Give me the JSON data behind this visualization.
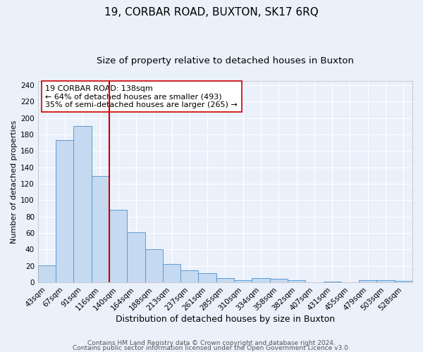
{
  "title": "19, CORBAR ROAD, BUXTON, SK17 6RQ",
  "subtitle": "Size of property relative to detached houses in Buxton",
  "xlabel": "Distribution of detached houses by size in Buxton",
  "ylabel": "Number of detached properties",
  "bin_labels": [
    "43sqm",
    "67sqm",
    "91sqm",
    "116sqm",
    "140sqm",
    "164sqm",
    "188sqm",
    "213sqm",
    "237sqm",
    "261sqm",
    "285sqm",
    "310sqm",
    "334sqm",
    "358sqm",
    "382sqm",
    "407sqm",
    "431sqm",
    "455sqm",
    "479sqm",
    "503sqm",
    "528sqm"
  ],
  "bar_values": [
    21,
    173,
    190,
    129,
    88,
    61,
    40,
    22,
    15,
    11,
    5,
    3,
    5,
    4,
    3,
    0,
    1,
    0,
    3,
    3,
    2
  ],
  "bar_color": "#c5d9f0",
  "bar_edge_color": "#5b9bd5",
  "vline_color": "#cc0000",
  "annotation_title": "19 CORBAR ROAD: 138sqm",
  "annotation_line1": "← 64% of detached houses are smaller (493)",
  "annotation_line2": "35% of semi-detached houses are larger (265) →",
  "annotation_box_color": "#ffffff",
  "annotation_box_edgecolor": "#cc0000",
  "ylim": [
    0,
    245
  ],
  "yticks": [
    0,
    20,
    40,
    60,
    80,
    100,
    120,
    140,
    160,
    180,
    200,
    220,
    240
  ],
  "footer1": "Contains HM Land Registry data © Crown copyright and database right 2024.",
  "footer2": "Contains public sector information licensed under the Open Government Licence v3.0.",
  "bg_color": "#eaf1fb",
  "grid_color": "#ffffff",
  "title_fontsize": 11,
  "subtitle_fontsize": 9.5,
  "xlabel_fontsize": 9,
  "ylabel_fontsize": 8,
  "tick_fontsize": 7.5,
  "annotation_fontsize": 8,
  "footer_fontsize": 6.5
}
